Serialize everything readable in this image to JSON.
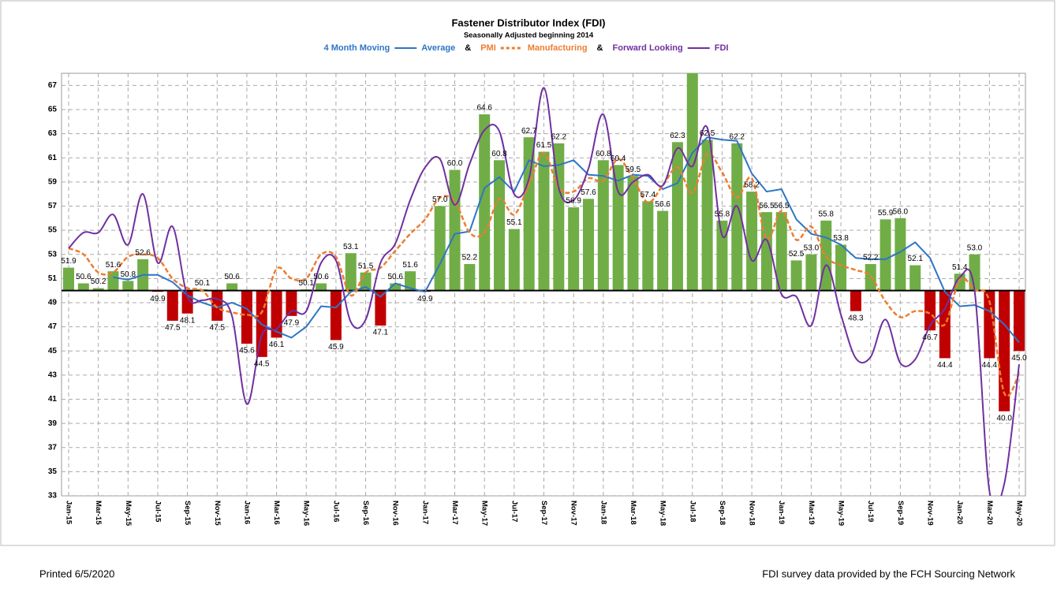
{
  "chart_data": {
    "type": "bar-line",
    "title": "Fastener Distributor Index (FDI)",
    "subtitle": "Seasonally Adjusted beginning 2014",
    "legend_joiner": "&",
    "categories": [
      "Jan-15",
      null,
      "Mar-15",
      null,
      "May-15",
      null,
      "Jul-15",
      null,
      "Sep-15",
      null,
      "Nov-15",
      null,
      "Jan-16",
      null,
      "Mar-16",
      null,
      "May-16",
      null,
      "Jul-16",
      null,
      "Sep-16",
      null,
      "Nov-16",
      null,
      "Jan-17",
      null,
      "Mar-17",
      null,
      "May-17",
      null,
      "Jul-17",
      null,
      "Sep-17",
      null,
      "Nov-17",
      null,
      "Jan-18",
      null,
      "Mar-18",
      null,
      "May-18",
      null,
      "Jul-18",
      null,
      "Sep-18",
      null,
      "Nov-18",
      null,
      "Jan-19",
      null,
      "Mar-19",
      null,
      "May-19",
      null,
      "Jul-19",
      null,
      "Sep-19",
      null,
      "Nov-19",
      null,
      "Jan-20",
      null,
      "Mar-20",
      null,
      "May-20"
    ],
    "values": [
      51.9,
      50.6,
      50.2,
      51.6,
      50.8,
      52.6,
      49.9,
      47.5,
      48.1,
      50.1,
      47.5,
      50.6,
      45.6,
      44.5,
      46.1,
      47.9,
      50.1,
      50.6,
      45.9,
      53.1,
      51.5,
      47.1,
      50.6,
      51.6,
      49.9,
      57.0,
      60.0,
      52.2,
      64.6,
      60.8,
      55.1,
      62.7,
      61.5,
      62.2,
      56.9,
      57.6,
      60.8,
      60.4,
      59.5,
      57.4,
      56.6,
      62.3,
      69,
      62.5,
      55.8,
      62.2,
      58.2,
      56.5,
      56.5,
      52.5,
      53.0,
      55.8,
      53.8,
      48.3,
      52.2,
      55.9,
      56.0,
      52.1,
      46.7,
      44.4,
      51.4,
      53.0,
      44.4,
      40.0,
      45.0
    ],
    "value_labels": [
      "51.9",
      "50.6",
      "50.2",
      "51.6",
      "50.8",
      "52.6",
      "49.9",
      "47.5",
      "48.1",
      "50.1",
      "47.5",
      "50.6",
      "45.6",
      "44.5",
      "46.1",
      "47.9",
      "50.1",
      "50.6",
      "45.9",
      "53.1",
      "51.5",
      "47.1",
      "50.6",
      "51.6",
      "49.9",
      "57.0",
      "60.0",
      "52.2",
      "64.6",
      "60.8",
      "55.1",
      "62.7",
      "61.5",
      "62.2",
      "56.9",
      "57.6",
      "60.8",
      "60.4",
      "59.5",
      "57.4",
      "56.6",
      "62.3",
      null,
      "62.5",
      "55.8",
      "62.2",
      "58.2",
      "56.5",
      "56.5",
      "52.5",
      "53.0",
      "55.8",
      "53.8",
      "48.3",
      "52.2",
      "55.9",
      "56.0",
      "52.1",
      "46.7",
      "44.4",
      "51.4",
      "53.0",
      "44.4",
      "40.0",
      "45.0"
    ],
    "baseline": 50,
    "above_color": "#70ad47",
    "below_color": "#c00000",
    "series": [
      {
        "name": "4 Month Moving",
        "name_suffix": "Average",
        "color": "#2e75c6",
        "style": "solid",
        "smooth": false,
        "values": [
          null,
          null,
          null,
          51.1,
          50.9,
          51.3,
          51.3,
          50.7,
          49.6,
          49.0,
          48.6,
          49.0,
          48.5,
          47.2,
          46.6,
          46.1,
          47.0,
          48.7,
          48.6,
          49.9,
          50.3,
          49.5,
          50.6,
          50.2,
          49.9,
          52.2,
          54.7,
          54.9,
          58.5,
          59.4,
          58.2,
          60.8,
          60.3,
          60.4,
          60.8,
          59.6,
          59.5,
          59.1,
          59.6,
          59.5,
          58.4,
          58.9,
          61.4,
          62.7,
          62.5,
          62.4,
          59.7,
          58.2,
          58.4,
          55.9,
          54.7,
          54.4,
          53.8,
          52.7,
          52.6,
          52.6,
          53.2,
          54.0,
          52.7,
          49.9,
          48.7,
          48.8,
          48.3,
          47.2,
          45.7
        ]
      },
      {
        "name": "PMI",
        "name_suffix": "Manufacturing",
        "color": "#ed7d31",
        "style": "dashed",
        "smooth": true,
        "values": [
          53.5,
          53.0,
          51.5,
          51.5,
          52.8,
          53.0,
          52.7,
          51.0,
          50.2,
          50.0,
          48.6,
          48.2,
          48.0,
          48.2,
          51.8,
          51.0,
          51.0,
          53.0,
          52.8,
          49.6,
          51.5,
          51.9,
          53.3,
          54.7,
          55.9,
          57.7,
          57.4,
          54.8,
          54.8,
          57.6,
          56.3,
          58.8,
          61.4,
          58.5,
          58.2,
          59.3,
          59.1,
          60.9,
          59.3,
          57.3,
          58.7,
          60.2,
          58.1,
          61.3,
          59.8,
          57.7,
          59.3,
          54.3,
          56.6,
          54.2,
          55.3,
          52.8,
          52.1,
          51.7,
          51.2,
          49.1,
          47.8,
          48.3,
          48.1,
          47.2,
          50.9,
          50.1,
          49.1,
          41.5,
          43.1
        ]
      },
      {
        "name": "Forward Looking",
        "name_suffix": "FDI",
        "color": "#7030a0",
        "style": "solid",
        "smooth": true,
        "values": [
          53.5,
          54.8,
          54.8,
          56.3,
          53.8,
          58.0,
          52.3,
          55.3,
          49.5,
          49.2,
          49.3,
          47.9,
          40.6,
          46.3,
          46.8,
          48.3,
          48.3,
          52.3,
          52.5,
          47.4,
          47.6,
          52.3,
          53.9,
          57.5,
          60.2,
          60.9,
          57.1,
          60.5,
          63.3,
          63.2,
          58.0,
          59.3,
          66.8,
          58.5,
          57.5,
          60.1,
          64.6,
          58.2,
          59.0,
          59.6,
          58.7,
          61.8,
          60.3,
          63.5,
          54.6,
          57.0,
          52.5,
          54.2,
          49.7,
          49.5,
          47.1,
          52.1,
          48.0,
          44.4,
          44.5,
          47.6,
          44.0,
          44.3,
          47.1,
          48.5,
          51.1,
          50.0,
          33.4,
          34.0,
          43.9
        ]
      }
    ],
    "ylim": [
      33,
      68
    ],
    "yticks": [
      33,
      35,
      37,
      39,
      41,
      43,
      45,
      47,
      49,
      51,
      53,
      55,
      57,
      59,
      61,
      63,
      65,
      67
    ],
    "grid": true
  },
  "footer": {
    "left": "Printed 6/5/2020",
    "right": "FDI survey data provided by the FCH Sourcing Network"
  }
}
